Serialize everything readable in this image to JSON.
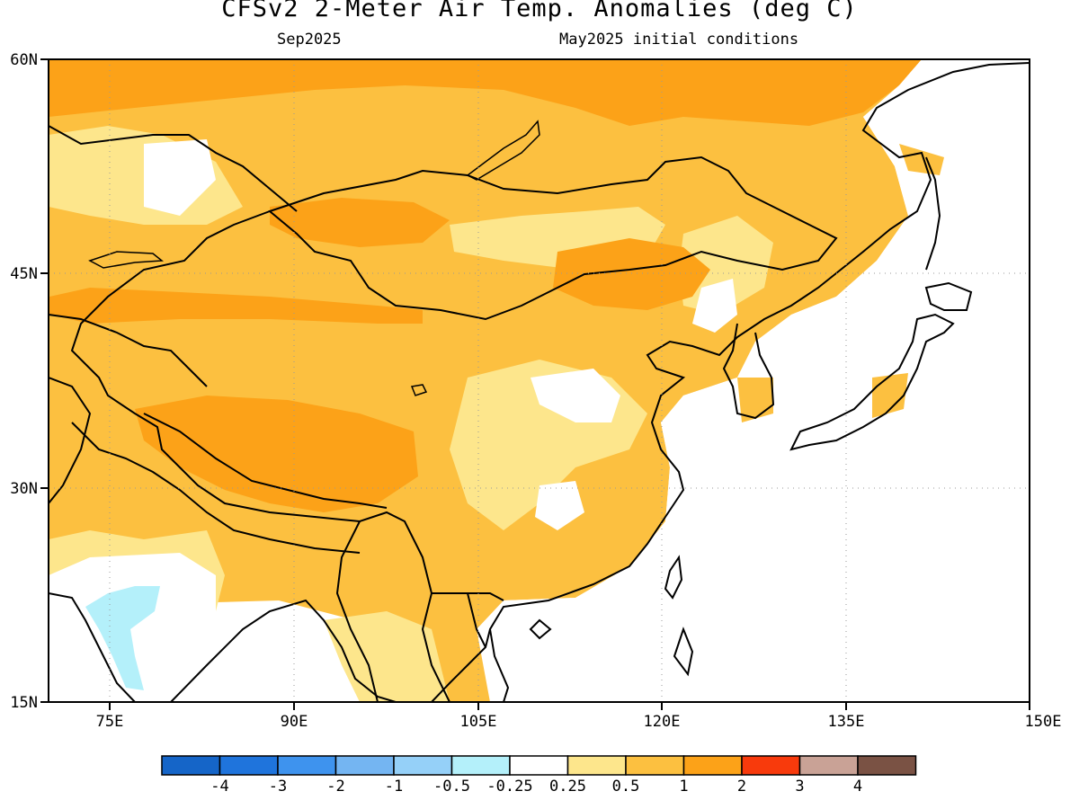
{
  "title": "CFSv2 2-Meter Air Temp. Anomalies (deg C)",
  "valid_month": "Sep2025",
  "initial_conditions": "May2025 initial conditions",
  "map": {
    "lon_range": [
      70,
      150
    ],
    "lat_range": [
      15,
      60
    ],
    "lon_ticks": [
      "75E",
      "90E",
      "105E",
      "120E",
      "135E",
      "150E"
    ],
    "lat_ticks": [
      "60N",
      "45N",
      "30N",
      "15N"
    ],
    "grid": "dotted",
    "region": "East and Central Asia",
    "field": "2-meter air temperature anomaly",
    "pattern": "warm anomalies (0.5 to 2 deg C) over most of the land area; strongest (1-2) over Tibetan Plateau, Siberia and Mongolia; near-zero over ocean; weak cold anomalies (-0.25 to -0.5) over central India"
  },
  "colorbar": {
    "labels": [
      "-4",
      "-3",
      "-2",
      "-1",
      "-0.5",
      "-0.25",
      "0.25",
      "0.5",
      "1",
      "2",
      "3",
      "4"
    ],
    "colors": [
      "#1565c8",
      "#1f74dc",
      "#3e93ee",
      "#74b5f2",
      "#95d0f8",
      "#b4f0fa",
      "#ffffff",
      "#fde68c",
      "#fcc040",
      "#fca218",
      "#f83a0c",
      "#c9a296",
      "#7a5244"
    ]
  }
}
